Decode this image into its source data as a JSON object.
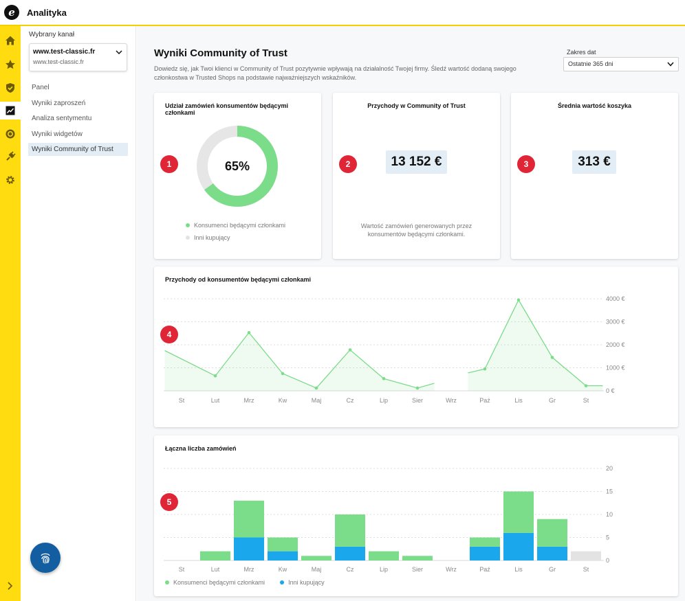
{
  "app": {
    "title": "Analityka"
  },
  "sidebar": {
    "channel_label": "Wybrany kanał",
    "channel_main": "www.test-classic.fr",
    "channel_sub": "www.test-classic.fr",
    "items": [
      {
        "label": "Panel"
      },
      {
        "label": "Wyniki zaproszeń"
      },
      {
        "label": "Analiza sentymentu"
      },
      {
        "label": "Wyniki widgetów"
      },
      {
        "label": "Wyniki Community of Trust"
      }
    ]
  },
  "page": {
    "title": "Wyniki Community of Trust",
    "description": "Dowiedz się, jak Twoi klienci w Community of Trust pozytywnie wpływają na działalność Twojej firmy. Śledź wartość dodaną swojego członkostwa w Trusted Shops na podstawie najważniejszych wskaźników.",
    "date_range_label": "Zakres dat",
    "date_range_value": "Ostatnie 365 dni"
  },
  "cards": {
    "share": {
      "title": "Udział zamówień konsumentów będącymi członkami",
      "badge": "1",
      "value_text": "65%",
      "value": 65,
      "legend_members": "Konsumenci będącymi członkami",
      "legend_others": "Inni kupujący"
    },
    "revenue": {
      "title": "Przychody w Community of Trust",
      "badge": "2",
      "value": "13 152 €",
      "note": "Wartość zamówień generowanych przez konsumentów będącymi członkami."
    },
    "basket": {
      "title": "Średnia wartość koszyka",
      "badge": "3",
      "value": "313 €"
    }
  },
  "chart_data": [
    {
      "type": "line",
      "title": "Przychody od konsumentów będącymi członkami",
      "badge": "4",
      "categories": [
        "St",
        "Lut",
        "Mrz",
        "Kw",
        "Maj",
        "Cz",
        "Lip",
        "Sier",
        "Wrz",
        "Paź",
        "Lis",
        "Gr",
        "St"
      ],
      "yticks": [
        "4000 €",
        "3000 €",
        "2000 €",
        "1000 €",
        "0 €"
      ],
      "ylim": [
        0,
        4000
      ],
      "points": [
        {
          "x": -0.5,
          "y": 1750
        },
        {
          "x": 1,
          "y": 650
        },
        {
          "x": 2,
          "y": 2530
        },
        {
          "x": 3,
          "y": 750
        },
        {
          "x": 4,
          "y": 120
        },
        {
          "x": 5,
          "y": 1780
        },
        {
          "x": 6,
          "y": 530
        },
        {
          "x": 7,
          "y": 120
        },
        {
          "x": 7.5,
          "y": 330
        },
        null,
        {
          "x": 8.5,
          "y": 780
        },
        {
          "x": 9,
          "y": 950
        },
        {
          "x": 10,
          "y": 3950
        },
        {
          "x": 11,
          "y": 1450
        },
        {
          "x": 12,
          "y": 220
        },
        {
          "x": 12.5,
          "y": 220
        }
      ],
      "markers": [
        1,
        2,
        3,
        4,
        5,
        6,
        7,
        9,
        10,
        11,
        12
      ],
      "color": "#7bdc8a"
    },
    {
      "type": "bar",
      "stacked": true,
      "title": "Łączna liczba zamówień",
      "badge": "5",
      "categories": [
        "St",
        "Lut",
        "Mrz",
        "Kw",
        "Maj",
        "Cz",
        "Lip",
        "Sier",
        "Wrz",
        "Paź",
        "Lis",
        "Gr",
        "St"
      ],
      "yticks": [
        "20",
        "15",
        "10",
        "5",
        "0"
      ],
      "ylim": [
        0,
        20
      ],
      "series": [
        {
          "name": "Inni kupujący",
          "color": "#1aa7ec",
          "values": [
            0,
            0,
            5,
            2,
            0,
            3,
            0,
            0,
            0,
            3,
            6,
            3,
            0
          ]
        },
        {
          "name": "Konsumenci będącymi członkami",
          "color": "#7bdc8a",
          "values": [
            0,
            2,
            8,
            3,
            1,
            7,
            2,
            1,
            0,
            2,
            9,
            6,
            0
          ]
        }
      ],
      "partial_last": {
        "value": 2,
        "color": "#e3e3e3"
      },
      "legend": [
        "Konsumenci będącymi członkami",
        "Inni kupujący"
      ]
    }
  ],
  "colors": {
    "accent": "#ffdc0f",
    "badge": "#e02636",
    "green": "#7bdc8a",
    "blue": "#1aa7ec",
    "fab": "#135ea0"
  }
}
